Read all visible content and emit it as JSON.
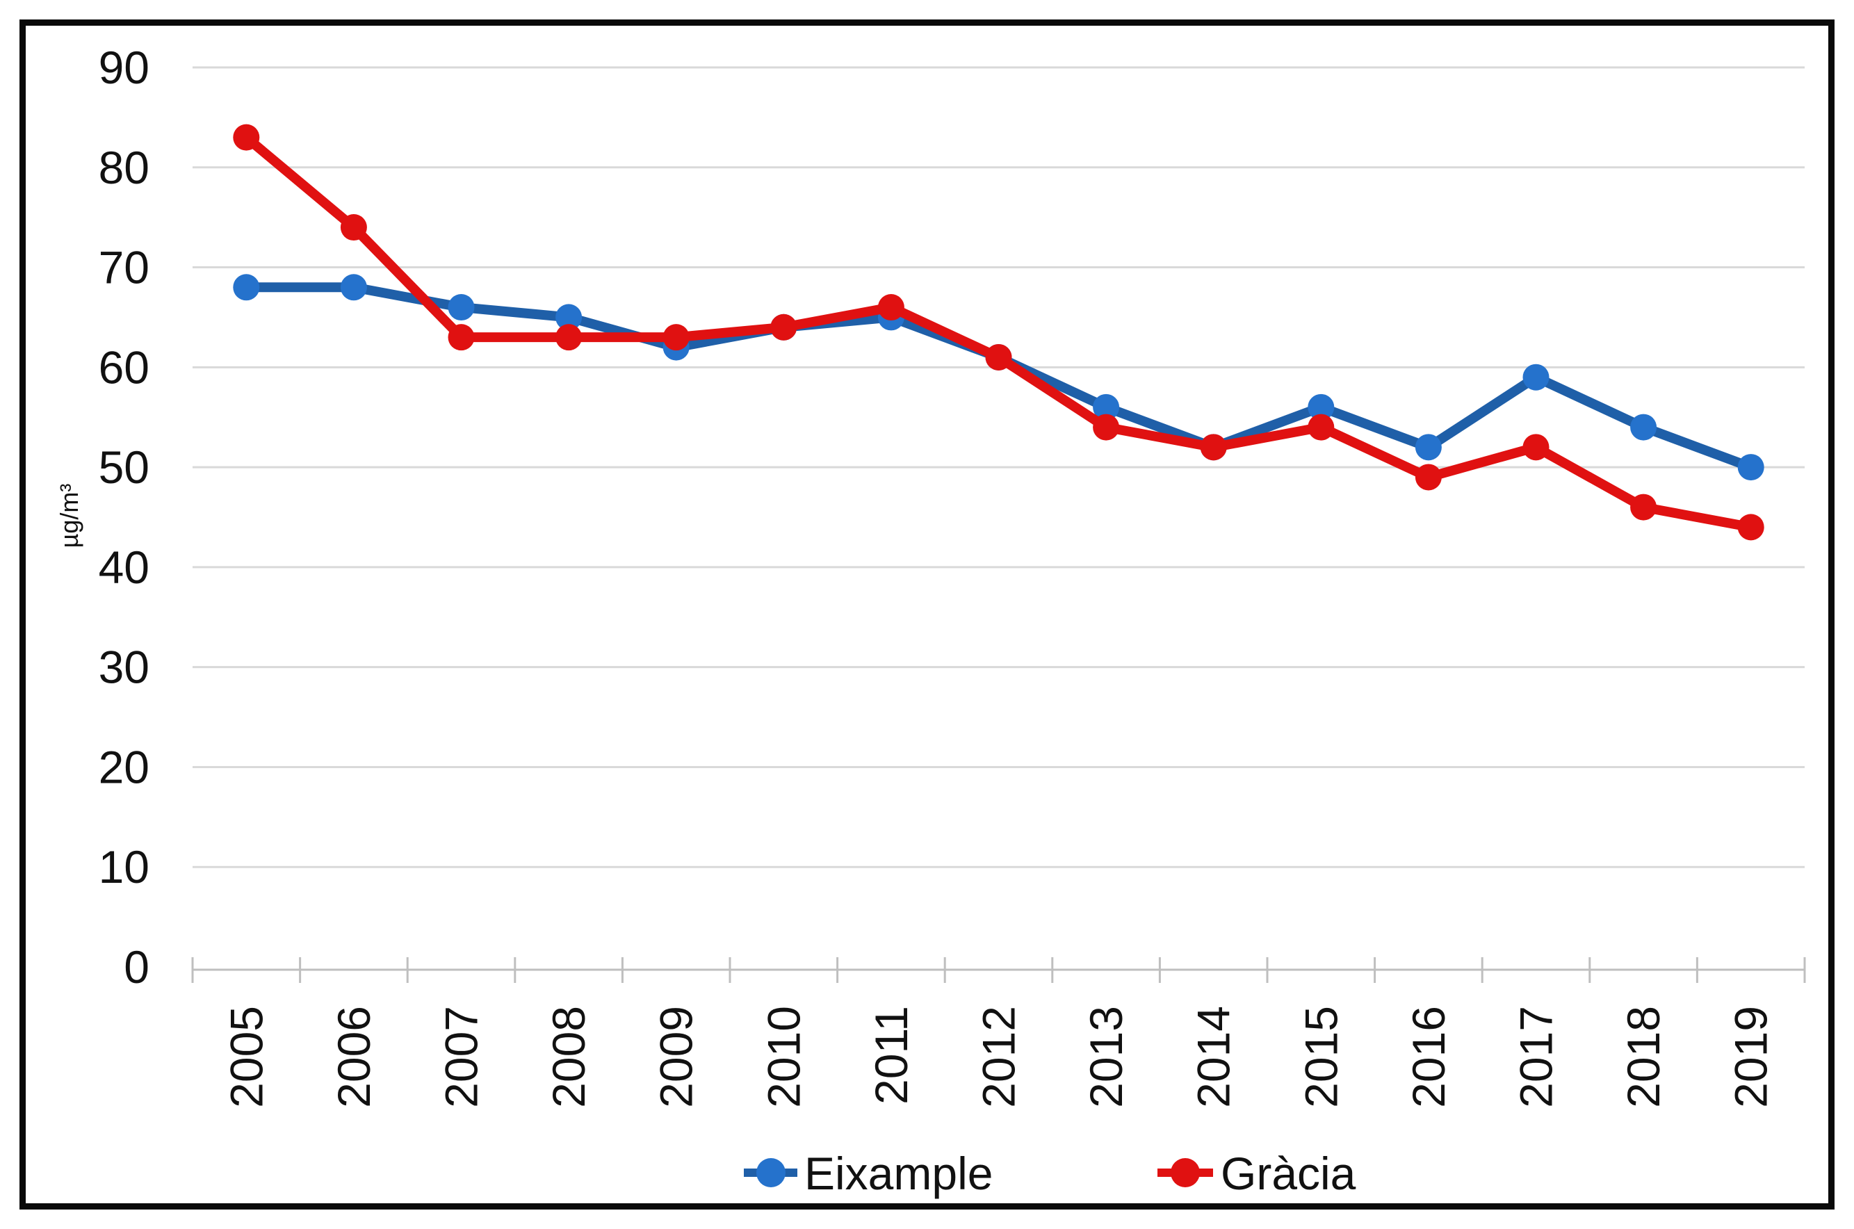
{
  "chart_data": {
    "type": "line",
    "title": "",
    "xlabel": "",
    "ylabel": "µg/m³",
    "categories": [
      "2005",
      "2006",
      "2007",
      "2008",
      "2009",
      "2010",
      "2011",
      "2012",
      "2013",
      "2014",
      "2015",
      "2016",
      "2017",
      "2018",
      "2019"
    ],
    "series": [
      {
        "name": "Eixample",
        "line_color": "#1F5FA8",
        "marker_color": "#2572CC",
        "values": [
          68,
          68,
          66,
          65,
          62,
          64,
          65,
          61,
          56,
          52,
          56,
          52,
          59,
          54,
          50
        ]
      },
      {
        "name": "Gràcia",
        "line_color": "#E01111",
        "marker_color": "#E01111",
        "values": [
          83,
          74,
          63,
          63,
          63,
          64,
          66,
          61,
          54,
          52,
          54,
          49,
          52,
          46,
          44
        ]
      }
    ],
    "ylim": [
      0,
      90
    ],
    "ytick_interval": 10,
    "ytick_labels": [
      "0",
      "10",
      "20",
      "30",
      "40",
      "50",
      "60",
      "70",
      "80",
      "90"
    ],
    "grid": "horizontal",
    "legend_position": "bottom",
    "colors": {
      "gridline": "#D9D9D9",
      "axis": "#BFBFBF",
      "text": "#111111",
      "frame_border": "#0A0A0A",
      "background": "#FFFFFF"
    }
  }
}
